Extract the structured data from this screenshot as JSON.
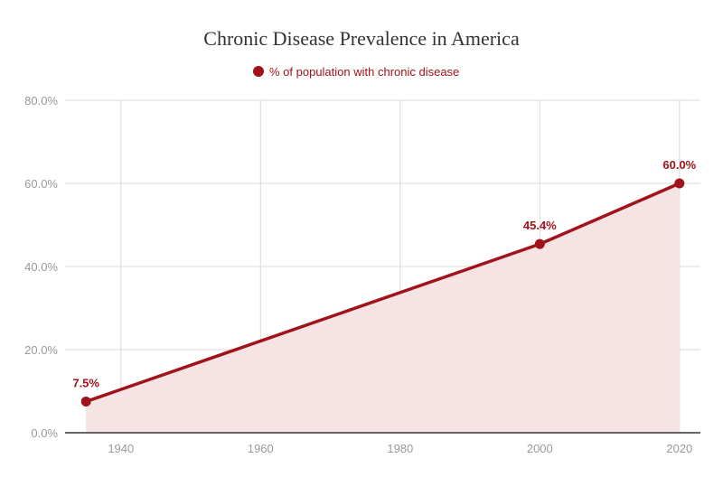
{
  "chart_data": {
    "type": "area",
    "title": "Chronic Disease Prevalence in America",
    "xlabel": "",
    "ylabel": "",
    "legend": {
      "position": "top",
      "entries": [
        "% of population with chronic disease"
      ]
    },
    "series": [
      {
        "name": "% of population with chronic disease",
        "x": [
          1935,
          2000,
          2020
        ],
        "values": [
          7.5,
          45.4,
          60.0
        ],
        "labels": [
          "7.5%",
          "45.4%",
          "60.0%"
        ],
        "color": "#a1131a",
        "fill_color": "#f6e3e4"
      }
    ],
    "xlim": [
      1932,
      2023
    ],
    "ylim": [
      0,
      80
    ],
    "x_ticks": [
      1940,
      1960,
      1980,
      2000,
      2020
    ],
    "x_tick_labels": [
      "1940",
      "1960",
      "1980",
      "2000",
      "2020"
    ],
    "y_ticks": [
      0,
      20,
      40,
      60,
      80
    ],
    "y_tick_labels": [
      "0.0%",
      "20.0%",
      "40.0%",
      "60.0%",
      "80.0%"
    ],
    "grid": true
  }
}
